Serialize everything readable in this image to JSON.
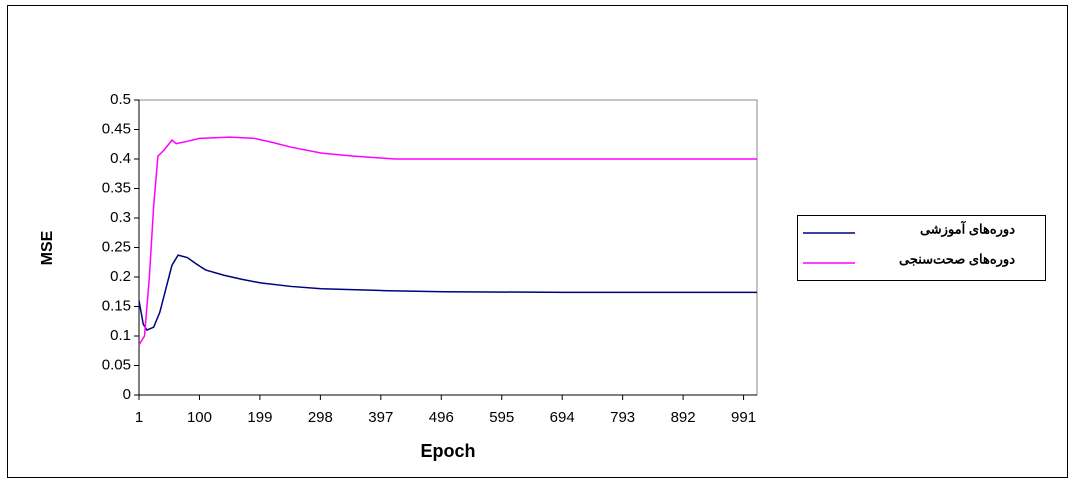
{
  "chart_data": {
    "type": "line",
    "x_label": "Epoch",
    "y_label": "MSE",
    "xlim": [
      1,
      1013
    ],
    "xticks": [
      1,
      100,
      199,
      298,
      397,
      496,
      595,
      694,
      793,
      892,
      991
    ],
    "ylim": [
      0,
      0.5
    ],
    "yticks": [
      0,
      0.05,
      0.1,
      0.15,
      0.2,
      0.25,
      0.3,
      0.35,
      0.4,
      0.45,
      0.5
    ],
    "grid": false,
    "legend": "right",
    "series": [
      {
        "name": "دوره‌های آموزشی",
        "color": "#000080",
        "x": [
          1,
          8,
          14,
          25,
          35,
          45,
          55,
          65,
          80,
          95,
          110,
          140,
          170,
          200,
          250,
          300,
          400,
          500,
          700,
          1013
        ],
        "values": [
          0.16,
          0.12,
          0.11,
          0.115,
          0.14,
          0.18,
          0.22,
          0.237,
          0.233,
          0.222,
          0.212,
          0.203,
          0.196,
          0.19,
          0.184,
          0.18,
          0.177,
          0.175,
          0.174,
          0.174
        ]
      },
      {
        "name": "دوره‌های صحت‌سنجی",
        "color": "#ff00ff",
        "x": [
          1,
          10,
          18,
          25,
          32,
          42,
          55,
          62,
          80,
          100,
          150,
          190,
          220,
          250,
          300,
          350,
          420,
          600,
          1013
        ],
        "values": [
          0.085,
          0.1,
          0.2,
          0.32,
          0.405,
          0.415,
          0.432,
          0.426,
          0.43,
          0.435,
          0.437,
          0.435,
          0.428,
          0.42,
          0.41,
          0.405,
          0.4,
          0.4,
          0.4
        ]
      }
    ]
  }
}
